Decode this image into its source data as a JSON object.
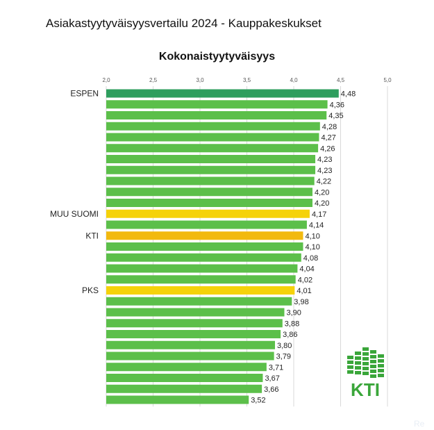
{
  "title": "Asiakastyytyväisyysvertailu 2024 - Kauppakeskukset",
  "subtitle": "Kokonaistyytyväisyys",
  "watermark": "Re",
  "logo": {
    "text": "KTI",
    "color": "#3aa63a"
  },
  "colors": {
    "default": "#5cbf4a",
    "leader": "#2e9e5e",
    "highlight": "#f5d20a",
    "kti": "#f2b90f",
    "grid": "#d9d9d9"
  },
  "chart_data": {
    "type": "bar",
    "orientation": "horizontal",
    "xlim": [
      2.0,
      5.0
    ],
    "xticks": [
      "2,0",
      "2,5",
      "3,0",
      "3,5",
      "4,0",
      "4,5",
      "5,0"
    ],
    "xtick_values": [
      2.0,
      2.5,
      3.0,
      3.5,
      4.0,
      4.5,
      5.0
    ],
    "grid": true,
    "bars": [
      {
        "category": "ESPEN",
        "value": 4.48,
        "label": "4,48",
        "color": "leader"
      },
      {
        "category": "",
        "value": 4.36,
        "label": "4,36",
        "color": "default"
      },
      {
        "category": "",
        "value": 4.35,
        "label": "4,35",
        "color": "default"
      },
      {
        "category": "",
        "value": 4.28,
        "label": "4,28",
        "color": "default"
      },
      {
        "category": "",
        "value": 4.27,
        "label": "4,27",
        "color": "default"
      },
      {
        "category": "",
        "value": 4.26,
        "label": "4,26",
        "color": "default"
      },
      {
        "category": "",
        "value": 4.23,
        "label": "4,23",
        "color": "default"
      },
      {
        "category": "",
        "value": 4.23,
        "label": "4,23",
        "color": "default"
      },
      {
        "category": "",
        "value": 4.22,
        "label": "4,22",
        "color": "default"
      },
      {
        "category": "",
        "value": 4.2,
        "label": "4,20",
        "color": "default"
      },
      {
        "category": "",
        "value": 4.2,
        "label": "4,20",
        "color": "default"
      },
      {
        "category": "MUU SUOMI",
        "value": 4.17,
        "label": "4,17",
        "color": "highlight"
      },
      {
        "category": "",
        "value": 4.14,
        "label": "4,14",
        "color": "default"
      },
      {
        "category": "KTI",
        "value": 4.1,
        "label": "4,10",
        "color": "kti"
      },
      {
        "category": "",
        "value": 4.1,
        "label": "4,10",
        "color": "default"
      },
      {
        "category": "",
        "value": 4.08,
        "label": "4,08",
        "color": "default"
      },
      {
        "category": "",
        "value": 4.04,
        "label": "4,04",
        "color": "default"
      },
      {
        "category": "",
        "value": 4.02,
        "label": "4,02",
        "color": "default"
      },
      {
        "category": "PKS",
        "value": 4.01,
        "label": "4,01",
        "color": "highlight"
      },
      {
        "category": "",
        "value": 3.98,
        "label": "3,98",
        "color": "default"
      },
      {
        "category": "",
        "value": 3.9,
        "label": "3,90",
        "color": "default"
      },
      {
        "category": "",
        "value": 3.88,
        "label": "3,88",
        "color": "default"
      },
      {
        "category": "",
        "value": 3.86,
        "label": "3,86",
        "color": "default"
      },
      {
        "category": "",
        "value": 3.8,
        "label": "3,80",
        "color": "default"
      },
      {
        "category": "",
        "value": 3.79,
        "label": "3,79",
        "color": "default"
      },
      {
        "category": "",
        "value": 3.71,
        "label": "3,71",
        "color": "default"
      },
      {
        "category": "",
        "value": 3.67,
        "label": "3,67",
        "color": "default"
      },
      {
        "category": "",
        "value": 3.66,
        "label": "3,66",
        "color": "default"
      },
      {
        "category": "",
        "value": 3.52,
        "label": "3,52",
        "color": "default"
      }
    ]
  }
}
